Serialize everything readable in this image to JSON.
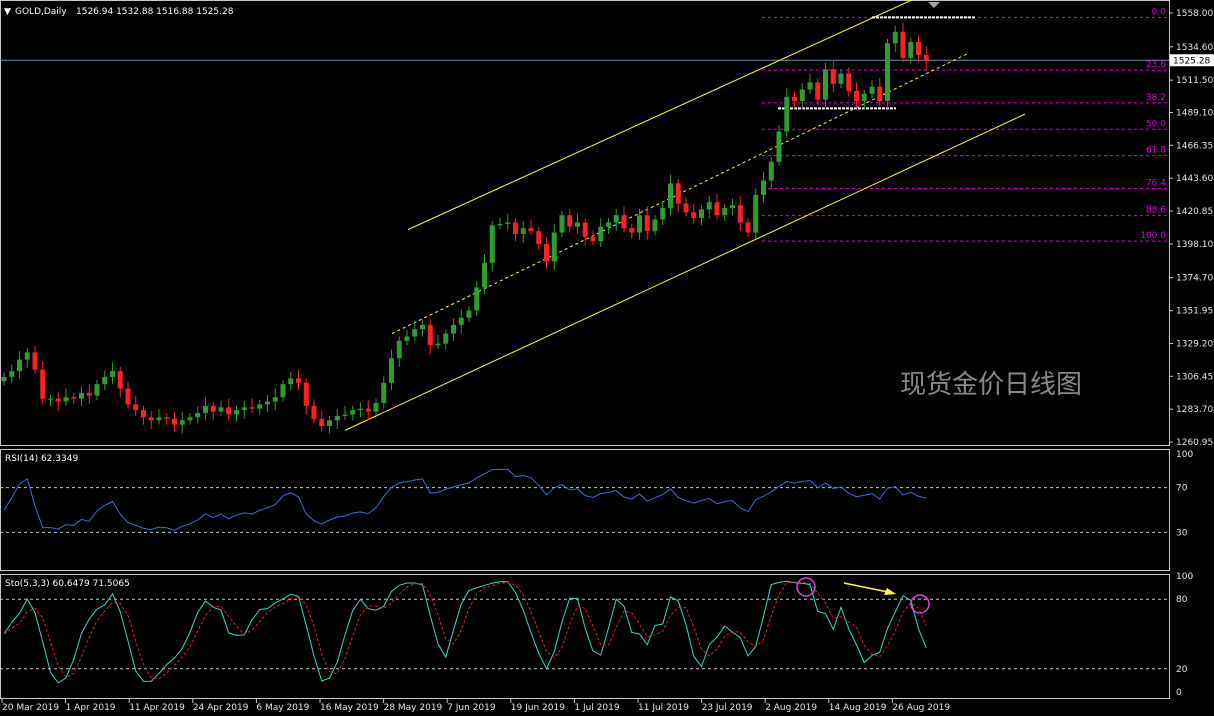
{
  "header": {
    "symbol_label": "GOLD,Daily",
    "ohlc": "1526.94 1532.88 1516.88 1525.28"
  },
  "watermark": "现货金价日线图",
  "colors": {
    "up": "#2e9e2e",
    "down": "#ff2020",
    "channel": "#ffff33",
    "fib": "#e000e0",
    "rsi": "#3a6fe0",
    "sto_main": "#40d8c8",
    "sto_signal": "#e02020",
    "axis": "#c8c8c8",
    "arrow": "#ffff33",
    "circle": "#e040e0"
  },
  "chart_data": [
    {
      "type": "candlestick",
      "title": "GOLD,Daily",
      "y_ticks": [
        "1558.00",
        "1534.60",
        "1511.50",
        "1489.10",
        "1466.35",
        "1443.60",
        "1420.85",
        "1398.10",
        "1374.70",
        "1351.95",
        "1329.20",
        "1306.45",
        "1283.70",
        "1260.95"
      ],
      "ylim": [
        1254,
        1562
      ],
      "current_price": "1525.28",
      "x_dates": [
        "20 Mar 2019",
        "1 Apr 2019",
        "11 Apr 2019",
        "24 Apr 2019",
        "6 May 2019",
        "16 May 2019",
        "28 May 2019",
        "7 Jun 2019",
        "19 Jun 2019",
        "1 Jul 2019",
        "11 Jul 2019",
        "23 Jul 2019",
        "2 Aug 2019",
        "14 Aug 2019",
        "26 Aug 2019"
      ],
      "closes": [
        1306,
        1310,
        1318,
        1323,
        1311,
        1291,
        1291,
        1289,
        1292,
        1291,
        1295,
        1293,
        1301,
        1306,
        1310,
        1298,
        1287,
        1283,
        1278,
        1276,
        1278,
        1277,
        1273,
        1276,
        1278,
        1281,
        1286,
        1282,
        1285,
        1280,
        1283,
        1285,
        1284,
        1287,
        1289,
        1292,
        1301,
        1305,
        1302,
        1286,
        1277,
        1272,
        1276,
        1279,
        1280,
        1283,
        1284,
        1282,
        1288,
        1302,
        1319,
        1331,
        1334,
        1339,
        1342,
        1328,
        1329,
        1336,
        1342,
        1347,
        1352,
        1368,
        1385,
        1411,
        1412,
        1413,
        1405,
        1409,
        1407,
        1398,
        1386,
        1406,
        1418,
        1410,
        1413,
        1403,
        1400,
        1410,
        1413,
        1418,
        1409,
        1406,
        1418,
        1407,
        1415,
        1423,
        1440,
        1426,
        1420,
        1416,
        1422,
        1427,
        1418,
        1423,
        1425,
        1413,
        1406,
        1432,
        1442,
        1455,
        1476,
        1500,
        1497,
        1505,
        1510,
        1498,
        1519,
        1509,
        1516,
        1504,
        1497,
        1502,
        1507,
        1497,
        1537,
        1545,
        1527,
        1538,
        1529,
        1525
      ],
      "fibonacci": {
        "levels": [
          "0.0",
          "23.6",
          "38.2",
          "50.0",
          "61.8",
          "76.4",
          "88.6",
          "100.0"
        ],
        "high": 1555,
        "low": 1400
      }
    },
    {
      "type": "line",
      "title": "RSI(14) 62.3349",
      "y_ticks": [
        "100",
        "70",
        "30"
      ],
      "ylim": [
        0,
        100
      ],
      "levels": [
        70,
        30
      ]
    },
    {
      "type": "line",
      "title": "Sto(5,3,3) 60.6479 71.5065",
      "y_ticks": [
        "100",
        "80",
        "20",
        "0"
      ],
      "ylim": [
        0,
        100
      ],
      "levels": [
        80,
        20
      ]
    }
  ]
}
